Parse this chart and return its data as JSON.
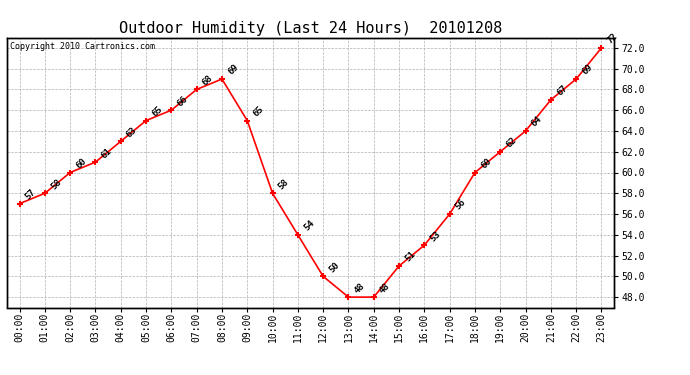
{
  "title": "Outdoor Humidity (Last 24 Hours)  20101208",
  "copyright": "Copyright 2010 Cartronics.com",
  "hours": [
    0,
    1,
    2,
    3,
    4,
    5,
    6,
    7,
    8,
    9,
    10,
    11,
    12,
    13,
    14,
    15,
    16,
    17,
    18,
    19,
    20,
    21,
    22,
    23
  ],
  "values": [
    57,
    58,
    60,
    61,
    63,
    65,
    66,
    68,
    69,
    65,
    58,
    54,
    50,
    48,
    48,
    51,
    53,
    56,
    60,
    62,
    64,
    67,
    69,
    72
  ],
  "x_labels": [
    "00:00",
    "01:00",
    "02:00",
    "03:00",
    "04:00",
    "05:00",
    "06:00",
    "07:00",
    "08:00",
    "09:00",
    "10:00",
    "11:00",
    "12:00",
    "13:00",
    "14:00",
    "15:00",
    "16:00",
    "17:00",
    "18:00",
    "19:00",
    "20:00",
    "21:00",
    "22:00",
    "23:00"
  ],
  "ylim": [
    47,
    73
  ],
  "yticks": [
    48.0,
    50.0,
    52.0,
    54.0,
    56.0,
    58.0,
    60.0,
    62.0,
    64.0,
    66.0,
    68.0,
    70.0,
    72.0
  ],
  "line_color": "red",
  "marker_color": "red",
  "bg_color": "white",
  "grid_color": "#b0b0b0",
  "title_fontsize": 11,
  "label_fontsize": 7,
  "annotation_fontsize": 6.5,
  "copyright_fontsize": 6
}
